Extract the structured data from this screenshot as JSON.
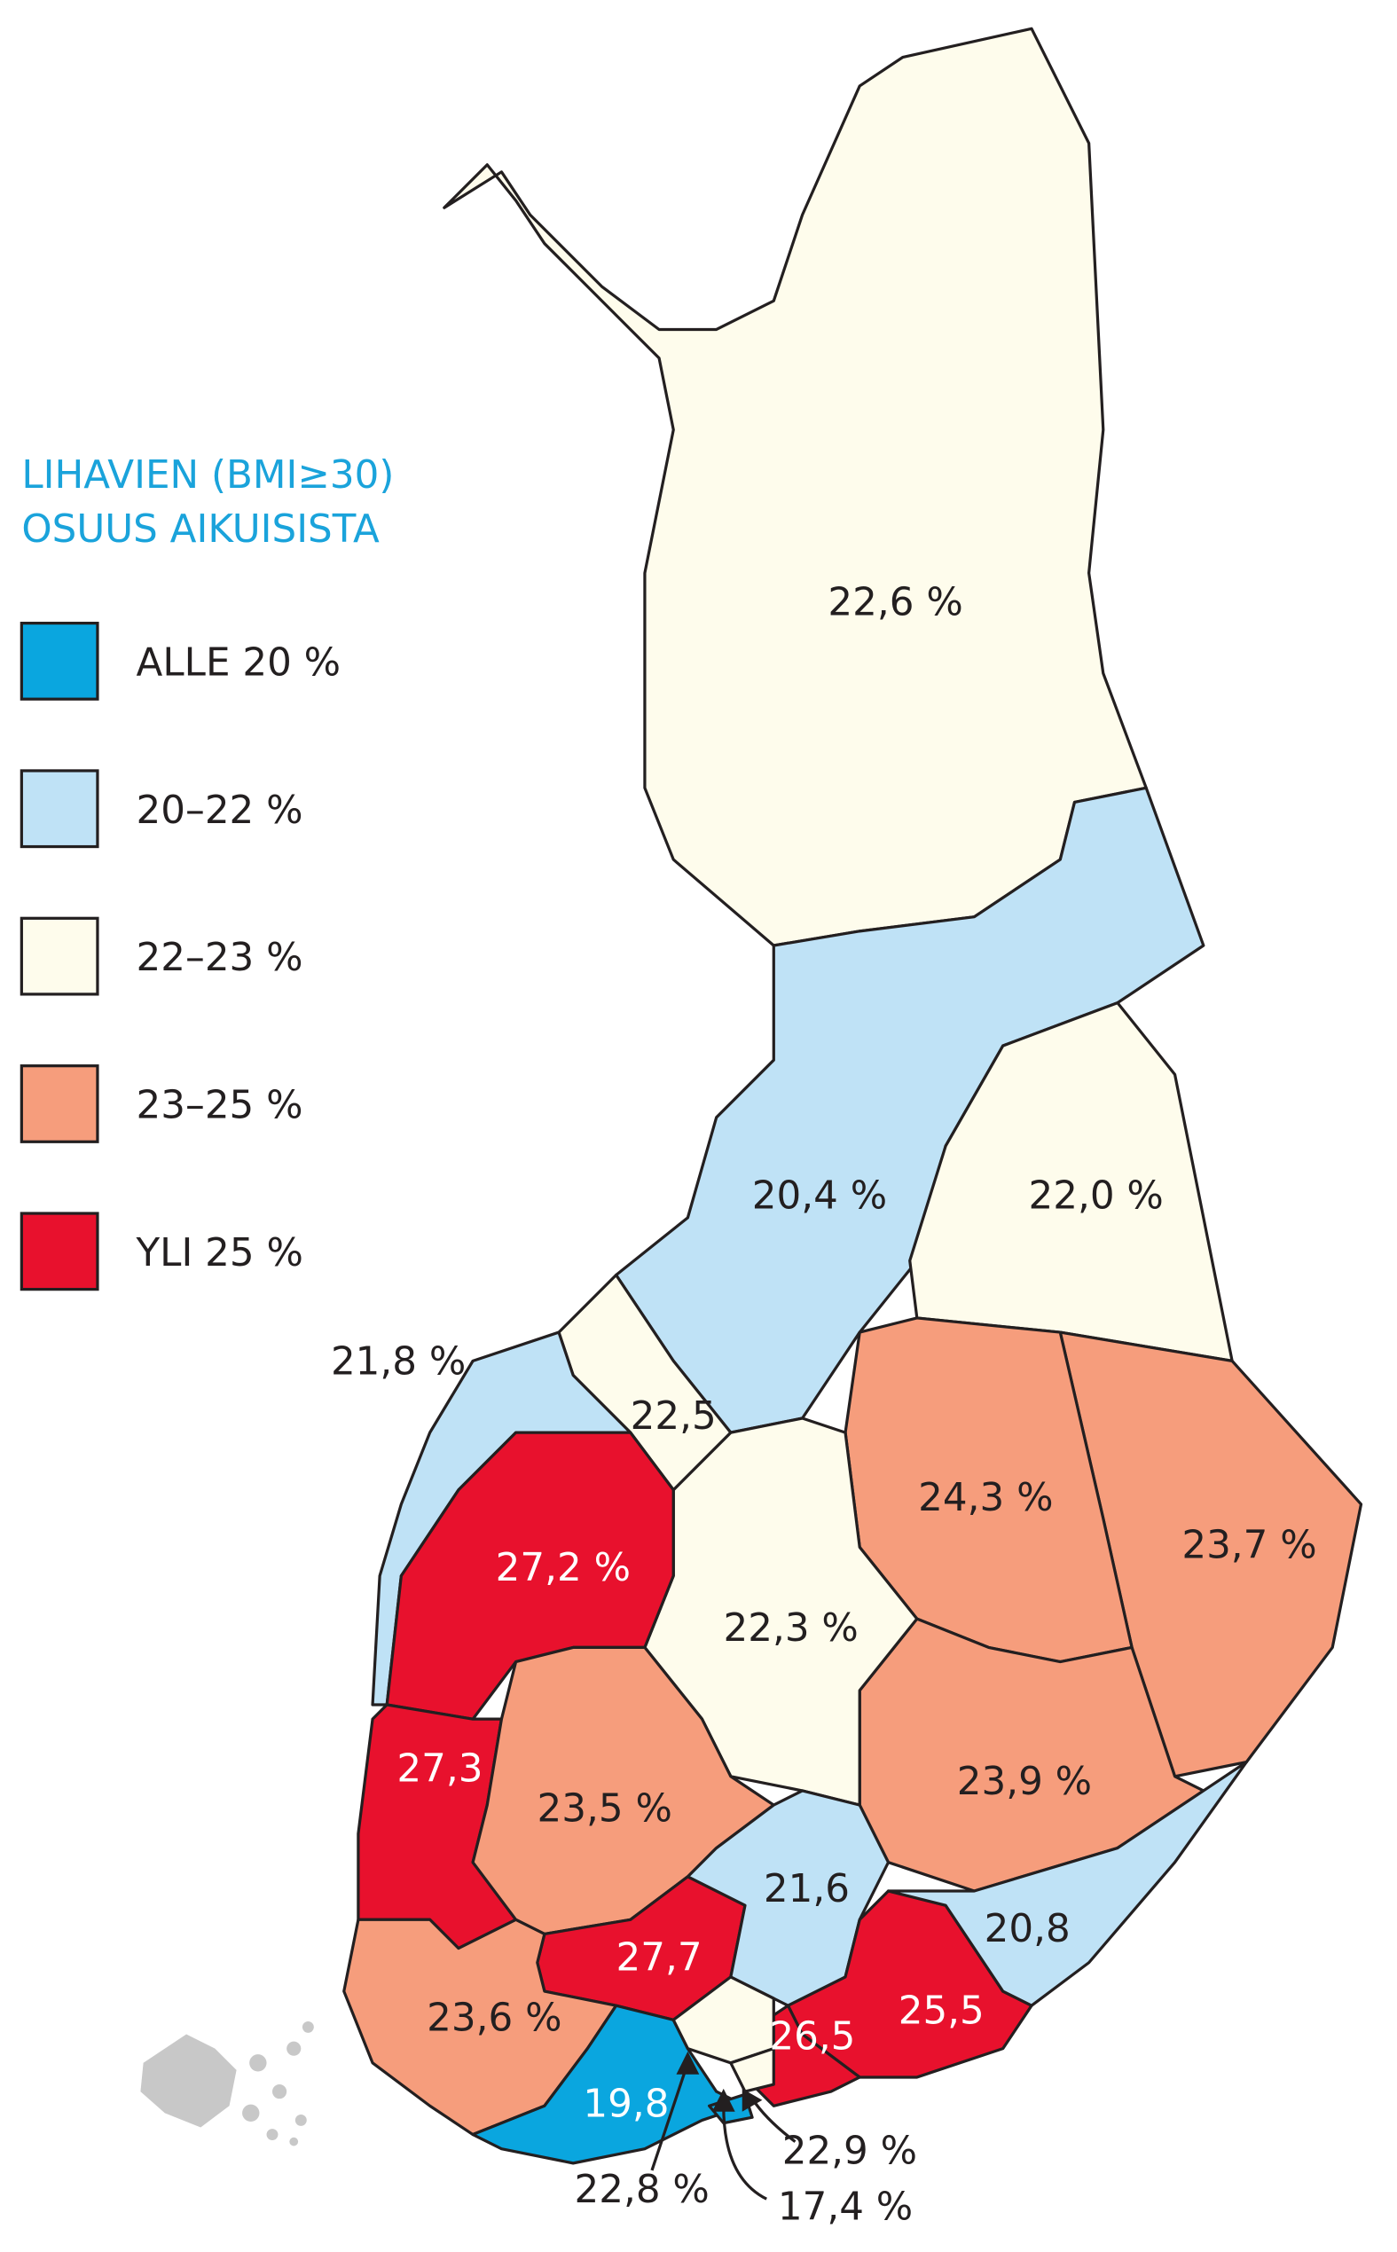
{
  "legend": {
    "title": [
      "LIHAVIEN (BMI≥30)",
      "OSUUS AIKUISISTA"
    ],
    "items": [
      {
        "label": "ALLE 20 %",
        "color": "#0aa6df"
      },
      {
        "label": "20–22 %",
        "color": "#bfe2f6"
      },
      {
        "label": "22–23 %",
        "color": "#fefcec"
      },
      {
        "label": "23–25 %",
        "color": "#f69d7c"
      },
      {
        "label": "YLI 25 %",
        "color": "#e8112d"
      }
    ]
  },
  "regions": [
    {
      "label": "22,6 %",
      "color": "#fefcec"
    },
    {
      "label": "20,4 %",
      "color": "#bfe2f6"
    },
    {
      "label": "22,0 %",
      "color": "#fefcec"
    },
    {
      "label": "23,7 %",
      "color": "#f69d7c"
    },
    {
      "label": "24,3 %",
      "color": "#f69d7c"
    },
    {
      "label": "23,9 %",
      "color": "#f69d7c"
    },
    {
      "label": "22,3 %",
      "color": "#fefcec"
    },
    {
      "label": "22,5",
      "color": "#fefcec"
    },
    {
      "label": "21,8 %",
      "color": "#bfe2f6"
    },
    {
      "label": "27,2 %",
      "color": "#e8112d"
    },
    {
      "label": "27,3",
      "color": "#e8112d"
    },
    {
      "label": "23,5 %",
      "color": "#f69d7c"
    },
    {
      "label": "27,7",
      "color": "#e8112d"
    },
    {
      "label": "21,6",
      "color": "#bfe2f6"
    },
    {
      "label": "25,5",
      "color": "#e8112d"
    },
    {
      "label": "20,8",
      "color": "#bfe2f6"
    },
    {
      "label": "26,5",
      "color": "#e8112d"
    },
    {
      "label": "23,6 %",
      "color": "#f69d7c"
    },
    {
      "label": "19,8",
      "color": "#0aa6df"
    },
    {
      "label": "22,8 %",
      "color": "#fefcec"
    },
    {
      "label": "22,9 %",
      "color": "#fefcec"
    },
    {
      "label": "17,4 %",
      "color": "#0aa6df"
    }
  ]
}
